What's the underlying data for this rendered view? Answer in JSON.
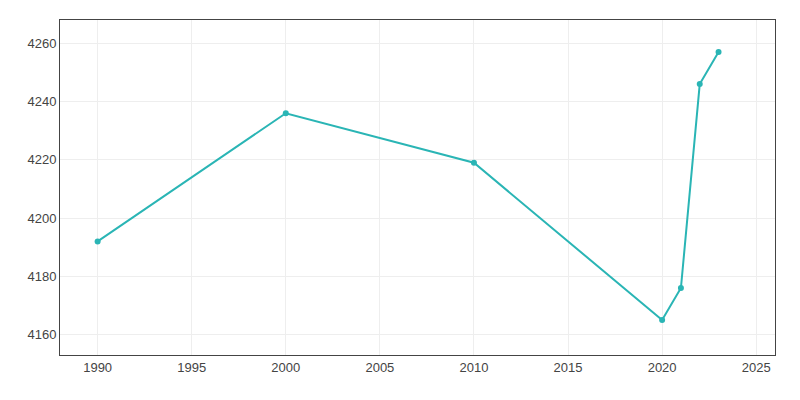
{
  "chart_data": {
    "type": "line",
    "x": [
      1990,
      2000,
      2010,
      2020,
      2021,
      2022,
      2023
    ],
    "values": [
      4192,
      4236,
      4219,
      4165,
      4176,
      4246,
      4257
    ],
    "color": "#2ab5b5",
    "marker": "circle",
    "xlim": [
      1988,
      2026
    ],
    "ylim": [
      4153,
      4268
    ],
    "xticks": [
      1990,
      1995,
      2000,
      2005,
      2010,
      2015,
      2020,
      2025
    ],
    "yticks": [
      4160,
      4180,
      4200,
      4220,
      4240,
      4260
    ],
    "grid": true
  }
}
